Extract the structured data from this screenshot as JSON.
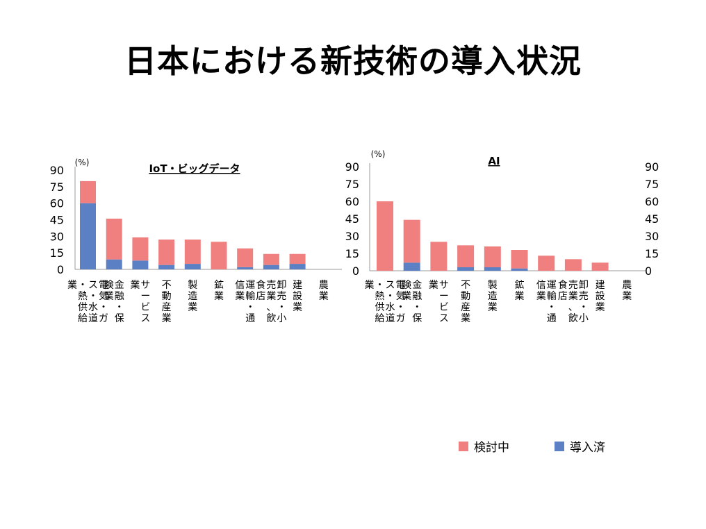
{
  "title": "日本における新技術の導入状況",
  "colors": {
    "considering": "#F08080",
    "adopted": "#5B80C4",
    "axis": "#999999"
  },
  "legend": {
    "considering": "検討中",
    "adopted": "導入済"
  },
  "chart_data": [
    {
      "type": "bar",
      "stacked": true,
      "title": "IoT・ビッグデータ",
      "unit": "(%)",
      "ylim": [
        0,
        90
      ],
      "yticks": [
        "0",
        "15",
        "30",
        "45",
        "60",
        "75",
        "90"
      ],
      "categories": [
        "電気・ガス・水道・熱供給業",
        "金融・保険業",
        "サービス業",
        "不動産業",
        "製造業",
        "鉱業",
        "運輸・通信業",
        "卸売・小売業、飲食店",
        "建設業",
        "農業"
      ],
      "series": [
        {
          "name": "導入済",
          "values": [
            60,
            9,
            8,
            4,
            5,
            0,
            2,
            4,
            5,
            0
          ]
        },
        {
          "name": "検討中",
          "values": [
            20,
            37,
            21,
            23,
            22,
            25,
            17,
            10,
            9,
            0
          ]
        }
      ]
    },
    {
      "type": "bar",
      "stacked": true,
      "title": "AI",
      "unit": "(%)",
      "ylim": [
        0,
        90
      ],
      "yticks": [
        "0",
        "15",
        "30",
        "45",
        "60",
        "75",
        "90"
      ],
      "categories": [
        "電気・ガス・水道・熱供給業",
        "金融・保険業",
        "サービス業",
        "不動産業",
        "製造業",
        "鉱業",
        "運輸・通信業",
        "卸売・小売業、飲食店",
        "建設業",
        "農業"
      ],
      "series": [
        {
          "name": "導入済",
          "values": [
            0,
            7,
            0,
            3,
            3,
            2,
            0,
            0,
            0,
            0
          ]
        },
        {
          "name": "検討中",
          "values": [
            60,
            37,
            25,
            19,
            18,
            16,
            13,
            10,
            7,
            0
          ]
        }
      ]
    }
  ]
}
